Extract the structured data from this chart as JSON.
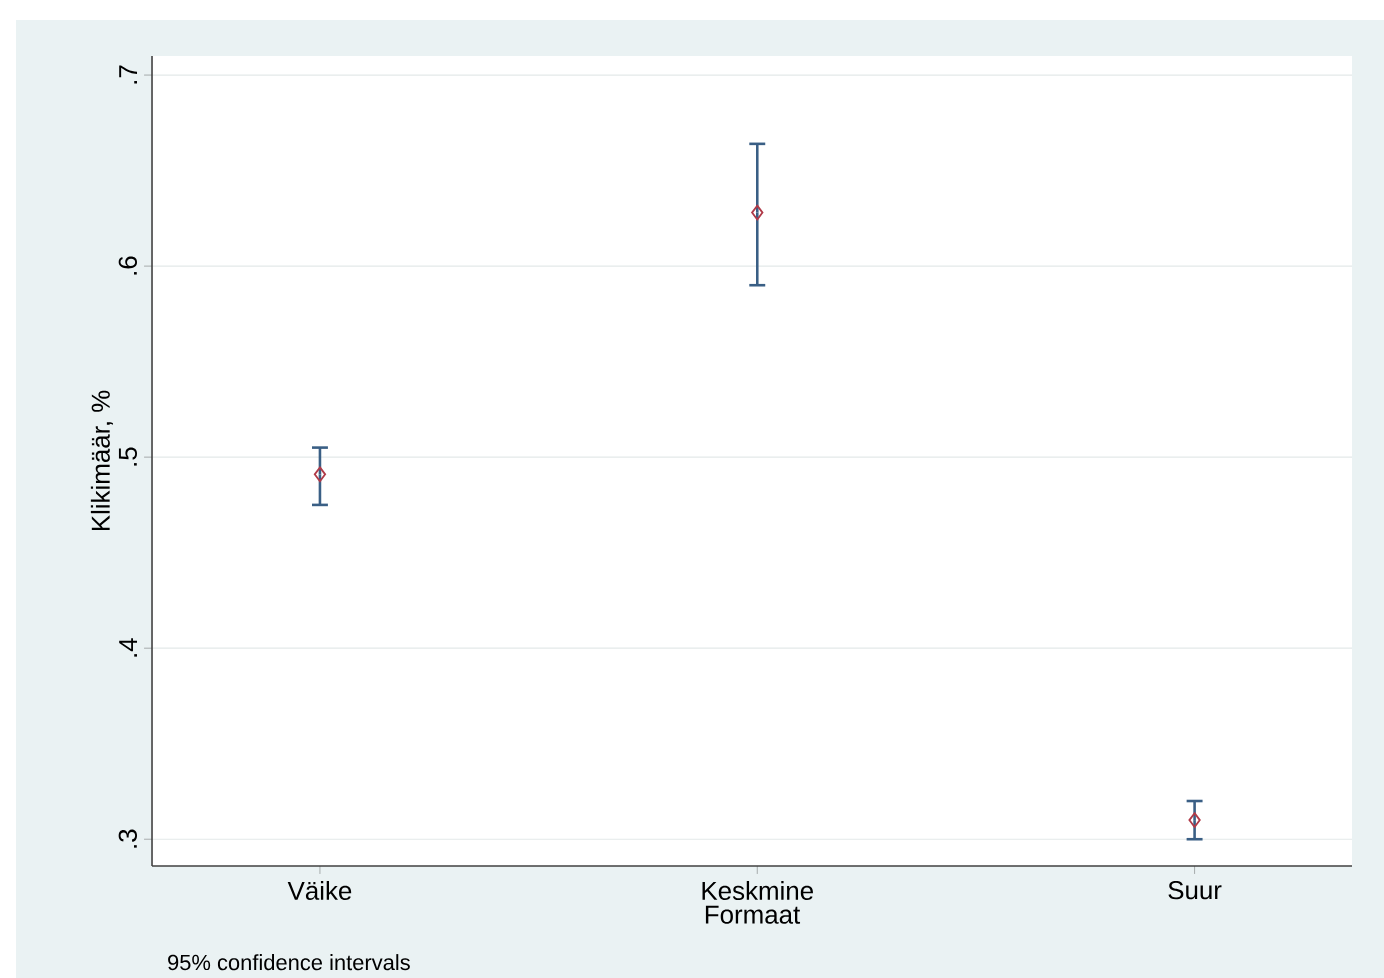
{
  "chart_data": {
    "type": "scatter",
    "xlabel": "Formaat",
    "ylabel": "Klikimäär, %",
    "categories": [
      "Väike",
      "Keskmine",
      "Suur"
    ],
    "values": [
      0.491,
      0.628,
      0.31
    ],
    "errors": [
      [
        0.475,
        0.505
      ],
      [
        0.59,
        0.664
      ],
      [
        0.3,
        0.32
      ]
    ],
    "color": "#b03a48",
    "marker": "diamond",
    "grid": "y",
    "ylim": [
      0.286,
      0.71
    ],
    "yticks": [
      {
        "value": 0.3,
        "label": ".3"
      },
      {
        "value": 0.4,
        "label": ".4"
      },
      {
        "value": 0.5,
        "label": ".5"
      },
      {
        "value": 0.6,
        "label": ".6"
      },
      {
        "value": 0.7,
        "label": ".7"
      }
    ],
    "annotations": [
      "95% confidence intervals"
    ]
  }
}
